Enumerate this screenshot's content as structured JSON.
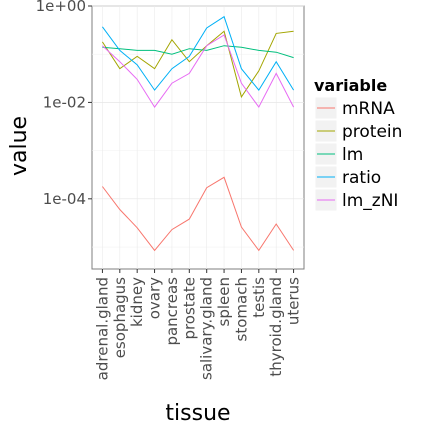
{
  "chart_data": {
    "type": "line",
    "xlabel": "tissue",
    "ylabel": "value",
    "y_scale": "log10",
    "ylim": [
      3.5e-06,
      1.0
    ],
    "yticks": [
      {
        "value": 1,
        "label": "1e+00"
      },
      {
        "value": 0.01,
        "label": "1e-02"
      },
      {
        "value": 0.0001,
        "label": "1e-04"
      }
    ],
    "categories": [
      "adrenal.gland",
      "esophagus",
      "kidney",
      "ovary",
      "pancreas",
      "prostate",
      "salivary.gland",
      "spleen",
      "stomach",
      "testis",
      "thyroid.gland",
      "uterus"
    ],
    "legend": {
      "title": "variable",
      "position": "right"
    },
    "series": [
      {
        "name": "mRNA",
        "color": "#F8766D",
        "values": [
          0.00018,
          6e-05,
          2.5e-05,
          8.5e-06,
          2.3e-05,
          3.8e-05,
          0.00017,
          0.00028,
          2.6e-05,
          8.5e-06,
          3e-05,
          8.5e-06
        ]
      },
      {
        "name": "protein",
        "color": "#A3A500",
        "values": [
          0.18,
          0.05,
          0.09,
          0.05,
          0.2,
          0.07,
          0.15,
          0.3,
          0.013,
          0.045,
          0.27,
          0.3
        ]
      },
      {
        "name": "lm",
        "color": "#00BF7D",
        "values": [
          0.14,
          0.13,
          0.12,
          0.12,
          0.1,
          0.13,
          0.12,
          0.15,
          0.14,
          0.12,
          0.11,
          0.085
        ]
      },
      {
        "name": "ratio",
        "color": "#00B0F6",
        "values": [
          0.37,
          0.12,
          0.06,
          0.018,
          0.05,
          0.09,
          0.35,
          0.6,
          0.05,
          0.018,
          0.07,
          0.018
        ]
      },
      {
        "name": "lm_zNI",
        "color": "#E76BF3",
        "values": [
          0.15,
          0.07,
          0.03,
          0.008,
          0.025,
          0.04,
          0.15,
          0.25,
          0.025,
          0.008,
          0.04,
          0.008
        ]
      }
    ]
  }
}
